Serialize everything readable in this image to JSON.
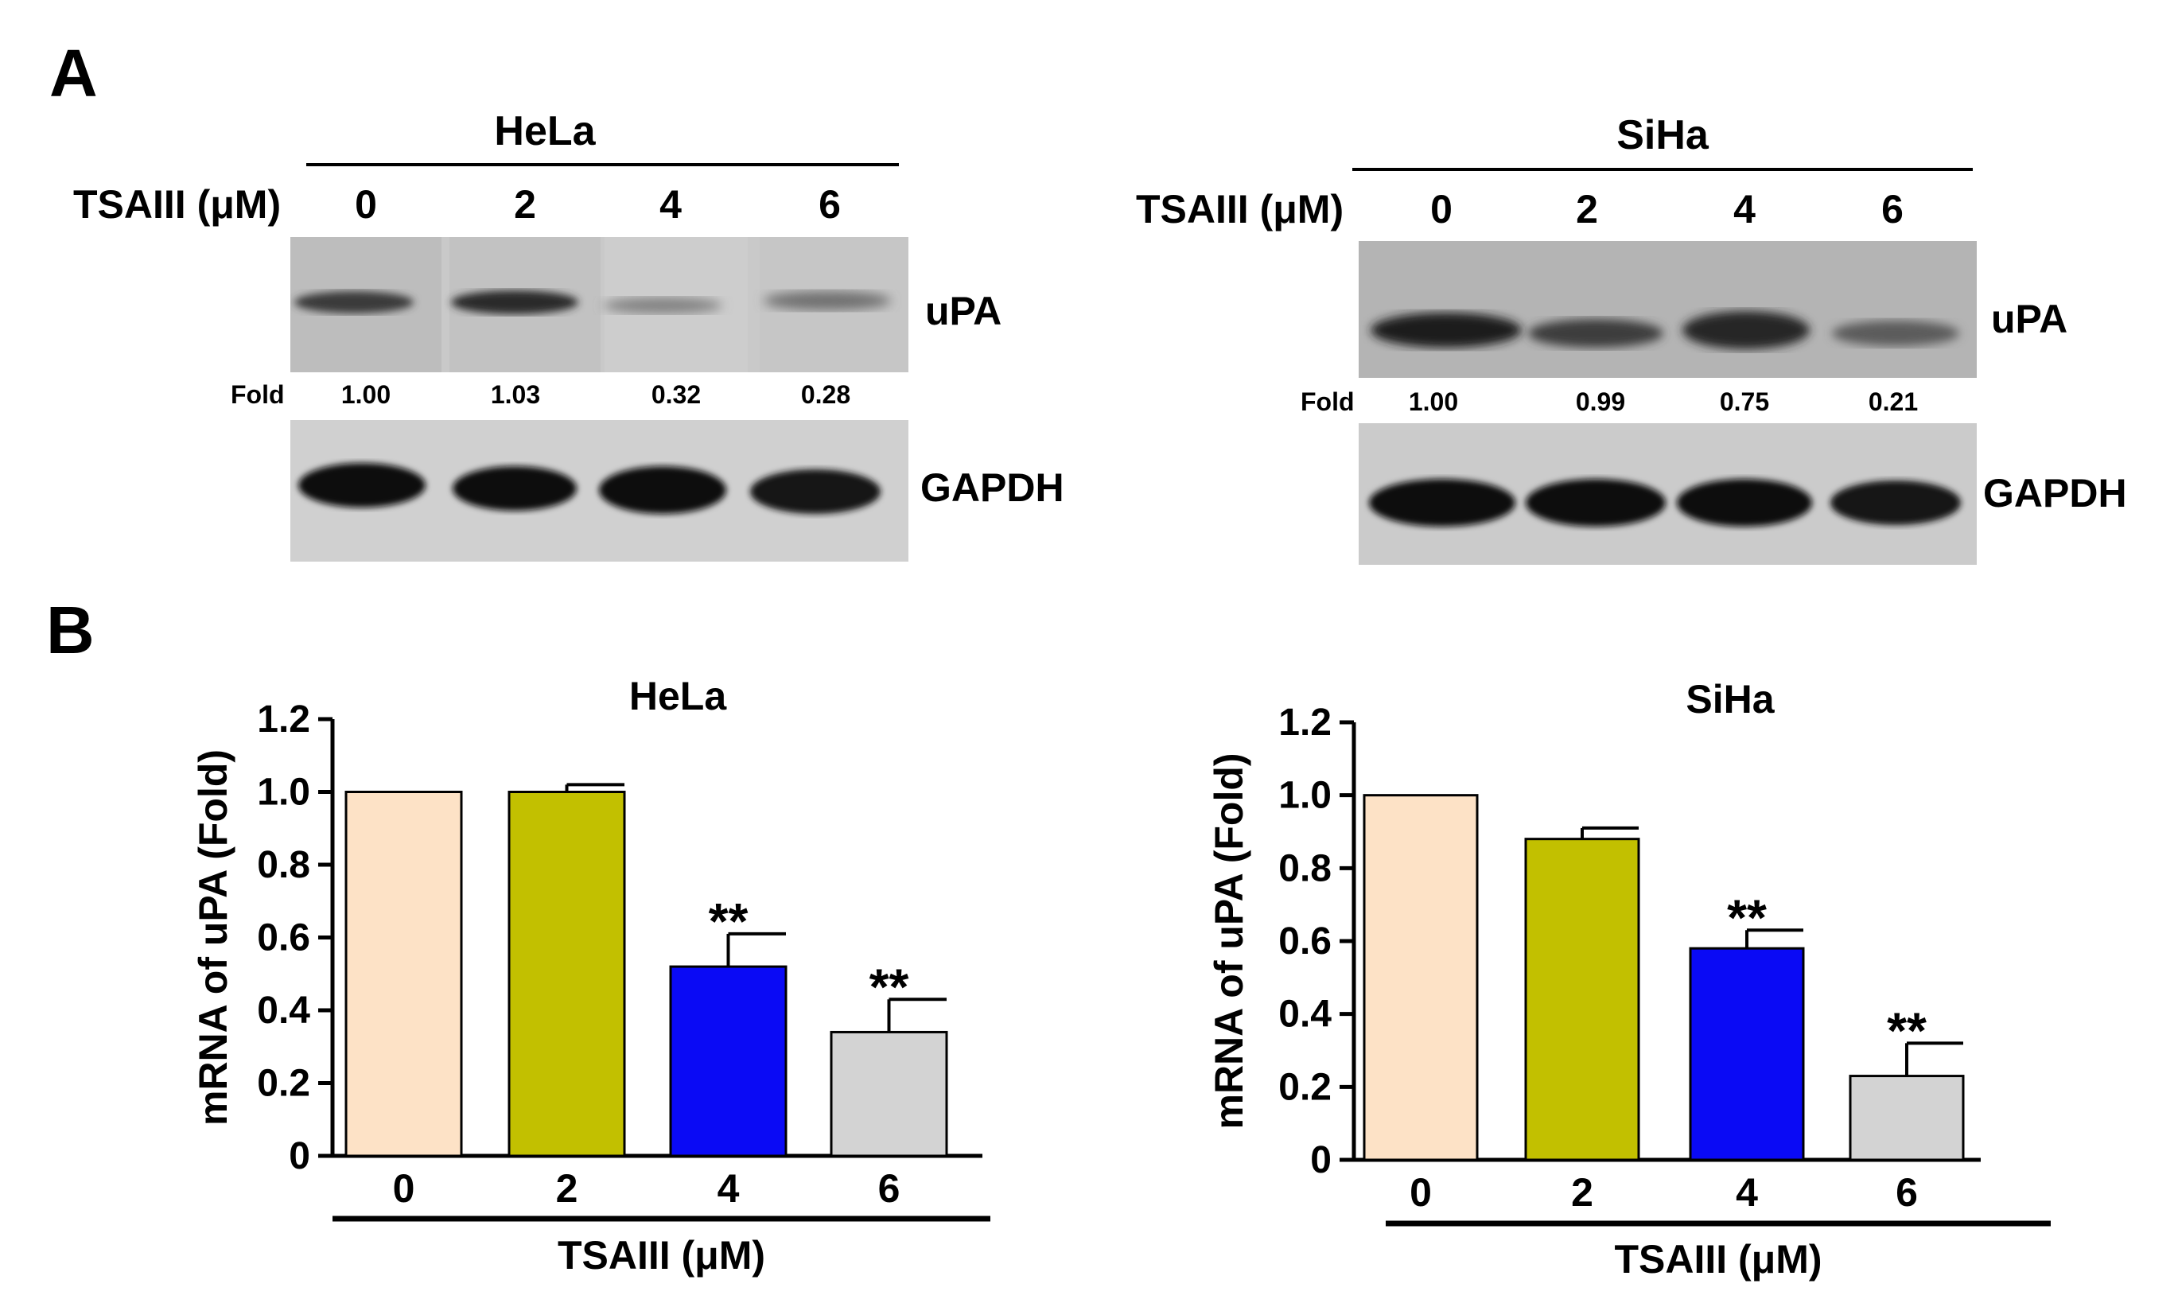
{
  "panels": {
    "a": "A",
    "b": "B"
  },
  "blots": [
    {
      "cell_line": "HeLa",
      "treatment_label": "TSAIII (μM)",
      "lanes": [
        "0",
        "2",
        "4",
        "6"
      ],
      "target_label": "uPA",
      "fold_label": "Fold",
      "fold_values": [
        "1.00",
        "1.03",
        "0.32",
        "0.28"
      ],
      "loading_label": "GAPDH"
    },
    {
      "cell_line": "SiHa",
      "treatment_label": "TSAIII (μM)",
      "lanes": [
        "0",
        "2",
        "4",
        "6"
      ],
      "target_label": "uPA",
      "fold_label": "Fold",
      "fold_values": [
        "1.00",
        "0.99",
        "0.75",
        "0.21"
      ],
      "loading_label": "GAPDH"
    }
  ],
  "colors": [
    "#fde2c6",
    "#c2c000",
    "#0a0af5",
    "#d3d3d3"
  ],
  "chart_data": [
    {
      "type": "bar",
      "title": "HeLa",
      "ylabel": "mRNA of uPA (Fold)",
      "xlabel": "TSAIII (μM)",
      "categories": [
        "0",
        "2",
        "4",
        "6"
      ],
      "values": [
        1.0,
        1.0,
        0.52,
        0.34
      ],
      "errors": [
        0,
        0.02,
        0.09,
        0.09
      ],
      "significance": [
        "",
        "",
        "**",
        "**"
      ],
      "ylim": [
        0,
        1.2
      ],
      "yticks": [
        "0",
        "0.2",
        "0.4",
        "0.6",
        "0.8",
        "1.0",
        "1.2"
      ]
    },
    {
      "type": "bar",
      "title": "SiHa",
      "ylabel": "mRNA of uPA (Fold)",
      "xlabel": "TSAIII (μM)",
      "categories": [
        "0",
        "2",
        "4",
        "6"
      ],
      "values": [
        1.0,
        0.88,
        0.58,
        0.23
      ],
      "errors": [
        0,
        0.03,
        0.05,
        0.09
      ],
      "significance": [
        "",
        "",
        "**",
        "**"
      ],
      "ylim": [
        0,
        1.2
      ],
      "yticks": [
        "0",
        "0.2",
        "0.4",
        "0.6",
        "0.8",
        "1.0",
        "1.2"
      ]
    }
  ]
}
